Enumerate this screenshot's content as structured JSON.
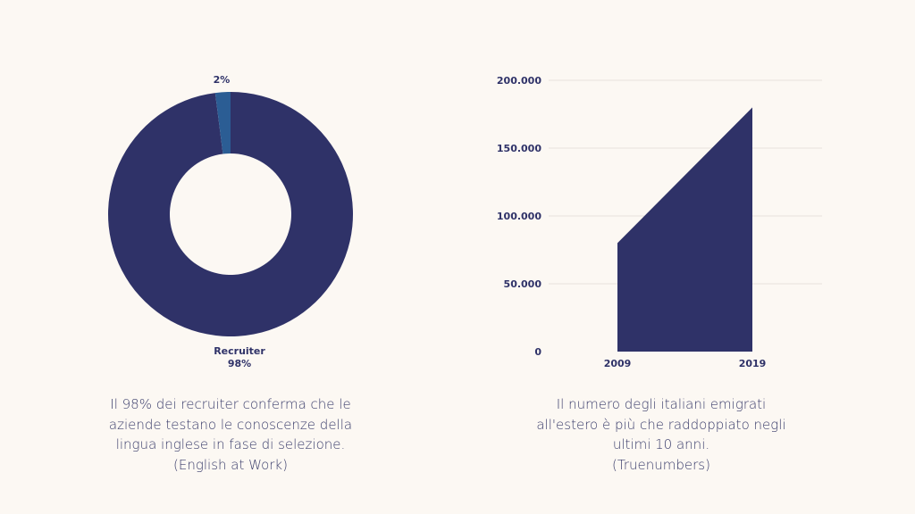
{
  "chart_data": [
    {
      "type": "pie",
      "donut": true,
      "slices": [
        {
          "label": "Recruiter",
          "value": 98,
          "value_label": "98%",
          "color": "#2f3268"
        },
        {
          "label": "",
          "value": 2,
          "value_label": "2%",
          "color": "#2b5d94"
        }
      ]
    },
    {
      "type": "area",
      "x": [
        "2009",
        "2019"
      ],
      "series": [
        {
          "values": [
            80000,
            180000
          ],
          "color": "#2f3268"
        }
      ],
      "ylim": [
        0,
        200000
      ],
      "yticks": [
        0,
        50000,
        100000,
        150000,
        200000
      ],
      "ytick_labels": [
        "0",
        "50.000",
        "100.000",
        "150.000",
        "200.000"
      ],
      "grid": true
    }
  ],
  "captions": {
    "left": [
      "Il 98% dei recruiter conferma che le",
      "aziende testano le conoscenze della",
      "lingua inglese in fase di selezione.",
      "(English at Work)"
    ],
    "right": [
      "Il numero degli italiani emigrati",
      "all'estero è più che raddoppiato negli",
      "ultimi 10 anni.",
      "(Truenumbers)"
    ]
  },
  "colors": {
    "background": "#fcf8f3",
    "primary": "#2f3268",
    "accent": "#2b5d94",
    "gridline": "#e7e2dc"
  }
}
